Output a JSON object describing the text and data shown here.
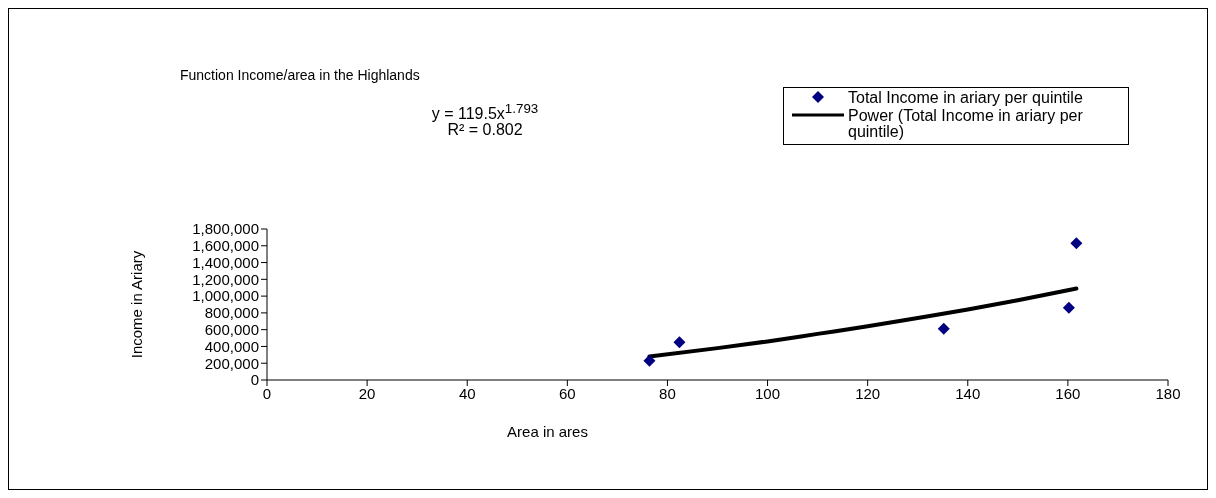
{
  "chart_data": {
    "type": "scatter",
    "title": "Function Income/area in the Highlands",
    "xlabel": "Area in ares",
    "ylabel": "Income in Ariary",
    "annotations": [
      "y = 119.5x$^{1.793}$",
      "R² = 0.802"
    ],
    "series": [
      {
        "name": "Total Income in ariary per quintile",
        "type": "scatter",
        "color": "#000080",
        "marker": "diamond",
        "x": [
          76.4,
          82.4,
          135.2,
          160.2,
          161.7
        ],
        "values": [
          230000,
          450000,
          610000,
          860000,
          1630000
        ]
      },
      {
        "name": "Power (Total Income in ariary per quintile)",
        "type": "line",
        "color": "#000000",
        "marker": "none",
        "line_style": "solid",
        "x": [
          76.4,
          90,
          100,
          110,
          120,
          130,
          140,
          150,
          161.7
        ],
        "values": [
          280000,
          380000,
          460000,
          550000,
          640000,
          740000,
          840000,
          950000,
          1090000
        ]
      }
    ],
    "xlim": [
      0,
      180
    ],
    "xticks": [
      0,
      20,
      40,
      60,
      80,
      100,
      120,
      140,
      160,
      180
    ],
    "ylim": [
      0,
      1800000
    ],
    "yticks": [
      0,
      {
        "value": 200000,
        "label": "200,000"
      },
      {
        "value": 400000,
        "label": "400,000"
      },
      {
        "value": 600000,
        "label": "600,000"
      },
      {
        "value": 800000,
        "label": "800,000"
      },
      {
        "value": 1000000,
        "label": "1,000,000"
      },
      {
        "value": 1200000,
        "label": "1,200,000"
      },
      {
        "value": 1400000,
        "label": "1,400,000"
      },
      {
        "value": 1600000,
        "label": "1,600,000"
      },
      {
        "value": 1800000,
        "label": "1,800,000"
      }
    ],
    "grid": false,
    "legend": "top right"
  }
}
